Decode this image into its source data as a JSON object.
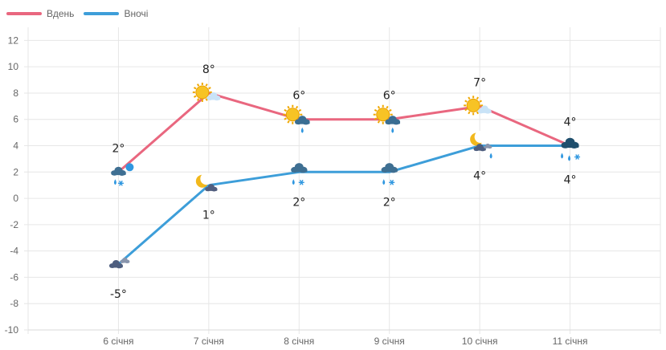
{
  "chart_data": {
    "type": "line",
    "categories": [
      "6 січня",
      "7 січня",
      "8 січня",
      "9 січня",
      "10 січня",
      "11 січня"
    ],
    "series": [
      {
        "name": "Вдень",
        "color": "#e9677f",
        "values": [
          2,
          8,
          6,
          6,
          7,
          4
        ],
        "labels": [
          "2°",
          "8°",
          "6°",
          "6°",
          "7°",
          "4°"
        ],
        "icons": [
          "cloud-snow-icon",
          "partly-cloudy-day-icon",
          "partly-cloudy-rain-icon",
          "partly-cloudy-rain-icon",
          "partly-cloudy-day-icon",
          "heavy-cloud-sleet-icon"
        ]
      },
      {
        "name": "Вночі",
        "color": "#3d9ed9",
        "values": [
          -5,
          1,
          2,
          2,
          4,
          4
        ],
        "labels": [
          "-5°",
          "1°",
          "2°",
          "2°",
          "4°",
          "4°"
        ],
        "icons": [
          "cloudy-night-icon",
          "partly-cloudy-night-icon",
          "cloud-sleet-icon",
          "cloud-sleet-icon",
          "partly-cloudy-night-rain-icon",
          "heavy-cloud-sleet-icon"
        ]
      }
    ],
    "ylim": [
      -10,
      13
    ],
    "yticks": [
      12,
      10,
      8,
      6,
      4,
      2,
      0,
      -2,
      -4,
      -6,
      -8,
      -10
    ],
    "grid": true,
    "legend_position": "top-left"
  }
}
